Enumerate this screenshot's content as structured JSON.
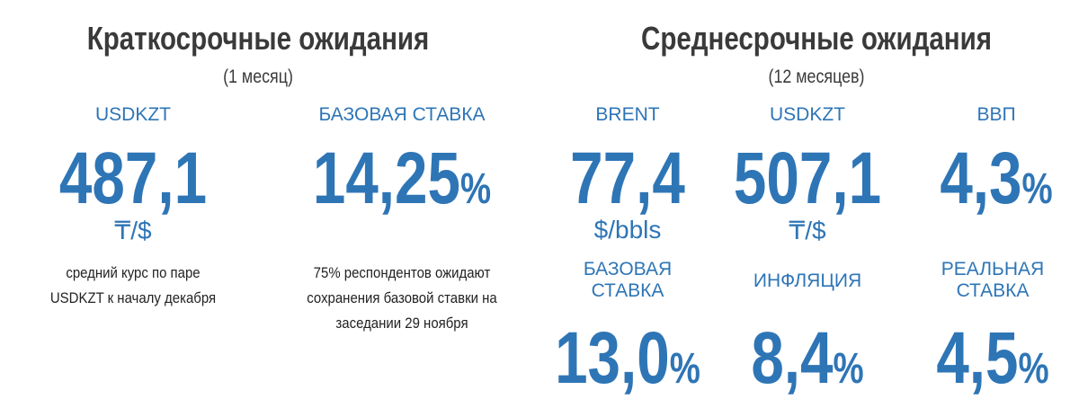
{
  "sections": [
    {
      "title": "Краткосрочные ожидания",
      "subtitle": "(1 месяц)",
      "items": [
        {
          "label": "USDKZT",
          "value": "487,1",
          "unit": "₸/$",
          "note_lines": [
            "средний курс по паре",
            "USDKZT к началу декабря"
          ]
        },
        {
          "label": "БАЗОВАЯ СТАВКА",
          "value": "14,25",
          "suffix": "%",
          "note_lines": [
            "75% респондентов ожидают",
            "сохранения базовой ставки на",
            "заседании 29 ноября"
          ]
        }
      ]
    },
    {
      "title": "Среднесрочные ожидания",
      "subtitle": "(12 месяцев)",
      "items": [
        {
          "label": "BRENT",
          "value": "77,4",
          "unit": "$/bbls"
        },
        {
          "label": "USDKZT",
          "value": "507,1",
          "unit": "₸/$"
        },
        {
          "label": "ВВП",
          "value": "4,3",
          "suffix": "%"
        },
        {
          "label": "БАЗОВАЯ СТАВКА",
          "value": "13,0",
          "suffix": "%"
        },
        {
          "label": "ИНФЛЯЦИЯ",
          "value": "8,4",
          "suffix": "%"
        },
        {
          "label": "РЕАЛЬНАЯ СТАВКА",
          "value": "4,5",
          "suffix": "%"
        }
      ]
    }
  ]
}
